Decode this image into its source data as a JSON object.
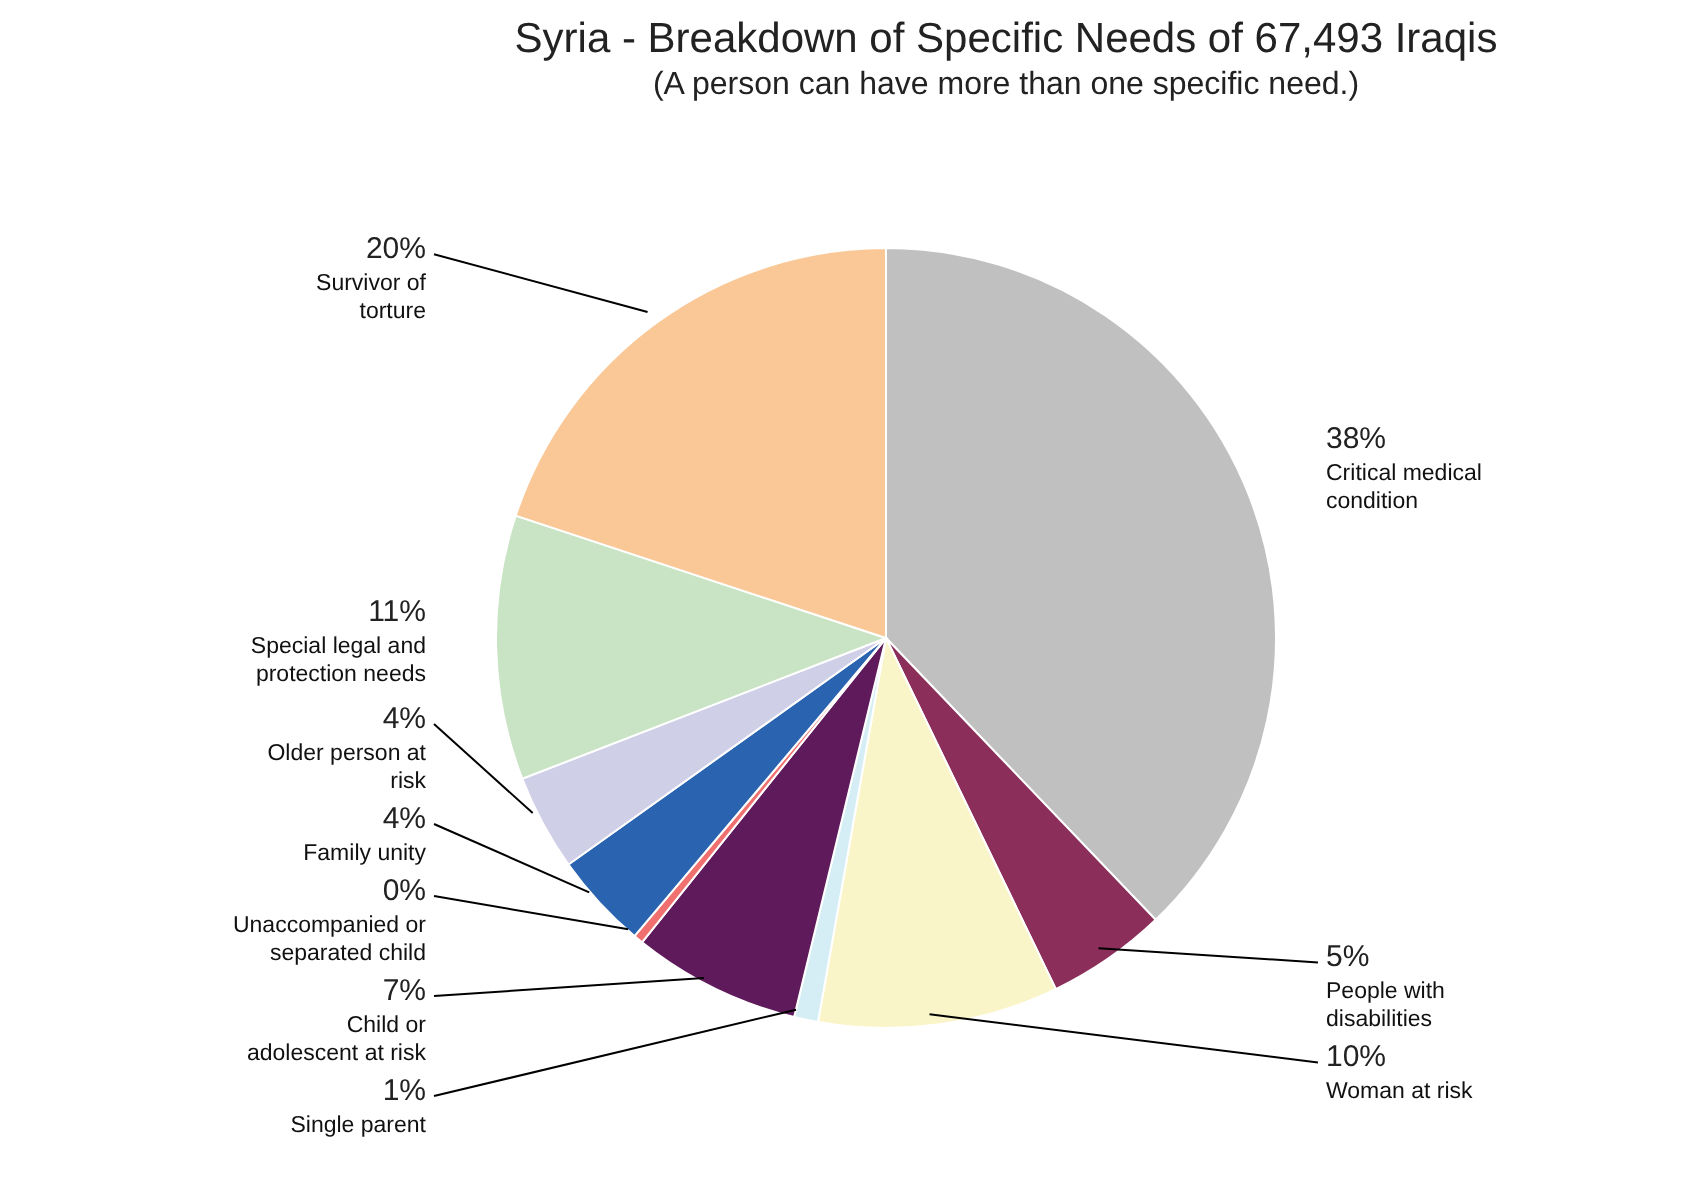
{
  "chart_data": {
    "type": "pie",
    "title": "Syria - Breakdown of Specific Needs of 67,493 Iraqis",
    "subtitle": "(A person can have more than one specific need.)",
    "categories": [
      "Critical medical condition",
      "People with disabilities",
      "Woman at risk",
      "Single parent",
      "Child or adolescent at risk",
      "Unaccompanied or separated child",
      "Family unity",
      "Older person at risk",
      "Special legal and protection needs",
      "Survivor of torture"
    ],
    "values": [
      38,
      5,
      10,
      1,
      7,
      0.4,
      4,
      4,
      11,
      20
    ],
    "value_labels": [
      "38%",
      "5%",
      "10%",
      "1%",
      "7%",
      "0%",
      "4%",
      "4%",
      "11%",
      "20%"
    ],
    "colors": [
      "#c0c0c0",
      "#8b2e5a",
      "#faf5c8",
      "#d5eef5",
      "#5e1a5a",
      "#f07070",
      "#2a63b0",
      "#d0cfe8",
      "#c9e4c4",
      "#f9c896"
    ]
  }
}
